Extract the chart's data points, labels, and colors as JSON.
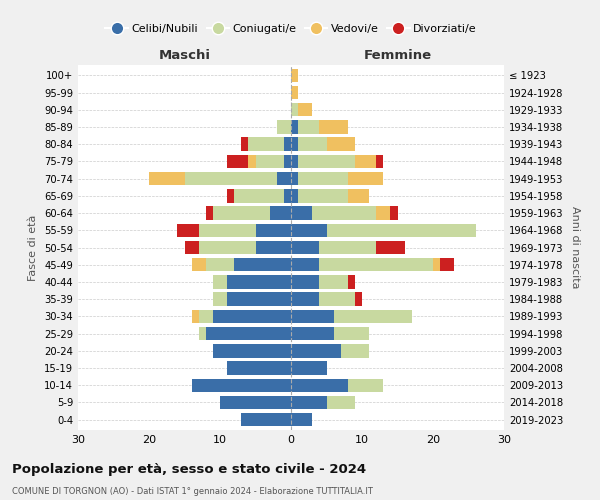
{
  "age_groups": [
    "0-4",
    "5-9",
    "10-14",
    "15-19",
    "20-24",
    "25-29",
    "30-34",
    "35-39",
    "40-44",
    "45-49",
    "50-54",
    "55-59",
    "60-64",
    "65-69",
    "70-74",
    "75-79",
    "80-84",
    "85-89",
    "90-94",
    "95-99",
    "100+"
  ],
  "birth_years": [
    "2019-2023",
    "2014-2018",
    "2009-2013",
    "2004-2008",
    "1999-2003",
    "1994-1998",
    "1989-1993",
    "1984-1988",
    "1979-1983",
    "1974-1978",
    "1969-1973",
    "1964-1968",
    "1959-1963",
    "1954-1958",
    "1949-1953",
    "1944-1948",
    "1939-1943",
    "1934-1938",
    "1929-1933",
    "1924-1928",
    "≤ 1923"
  ],
  "maschi": {
    "celibi": [
      7,
      10,
      14,
      9,
      11,
      12,
      11,
      9,
      9,
      8,
      5,
      5,
      3,
      1,
      2,
      1,
      1,
      0,
      0,
      0,
      0
    ],
    "coniugati": [
      0,
      0,
      0,
      0,
      0,
      1,
      2,
      2,
      2,
      4,
      8,
      8,
      8,
      7,
      13,
      4,
      5,
      2,
      0,
      0,
      0
    ],
    "vedovi": [
      0,
      0,
      0,
      0,
      0,
      0,
      1,
      0,
      0,
      2,
      0,
      0,
      0,
      0,
      5,
      1,
      0,
      0,
      0,
      0,
      0
    ],
    "divorziati": [
      0,
      0,
      0,
      0,
      0,
      0,
      0,
      0,
      0,
      0,
      2,
      3,
      1,
      1,
      0,
      3,
      1,
      0,
      0,
      0,
      0
    ]
  },
  "femmine": {
    "nubili": [
      3,
      5,
      8,
      5,
      7,
      6,
      6,
      4,
      4,
      4,
      4,
      5,
      3,
      1,
      1,
      1,
      1,
      1,
      0,
      0,
      0
    ],
    "coniugate": [
      0,
      4,
      5,
      0,
      4,
      5,
      11,
      5,
      4,
      16,
      8,
      21,
      9,
      7,
      7,
      8,
      4,
      3,
      1,
      0,
      0
    ],
    "vedove": [
      0,
      0,
      0,
      0,
      0,
      0,
      0,
      0,
      0,
      1,
      0,
      0,
      2,
      3,
      5,
      3,
      4,
      4,
      2,
      1,
      1
    ],
    "divorziate": [
      0,
      0,
      0,
      0,
      0,
      0,
      0,
      1,
      1,
      2,
      4,
      0,
      1,
      0,
      0,
      1,
      0,
      0,
      0,
      0,
      0
    ]
  },
  "colors": {
    "celibi_nubili": "#3a6ea8",
    "coniugati": "#c8d9a0",
    "vedovi": "#f0c060",
    "divorziati": "#cc2020"
  },
  "title": "Popolazione per età, sesso e stato civile - 2024",
  "subtitle": "COMUNE DI TORGNON (AO) - Dati ISTAT 1° gennaio 2024 - Elaborazione TUTTITALIA.IT",
  "xlabel_left": "Maschi",
  "xlabel_right": "Femmine",
  "ylabel_left": "Fasce di età",
  "ylabel_right": "Anni di nascita",
  "xlim": 30,
  "bg_color": "#f0f0f0",
  "plot_bg": "#ffffff",
  "legend_labels": [
    "Celibi/Nubili",
    "Coniugati/e",
    "Vedovi/e",
    "Divorziati/e"
  ]
}
